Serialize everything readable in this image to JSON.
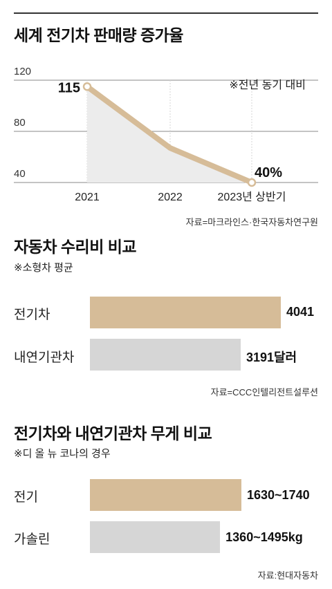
{
  "chart1": {
    "title": "세계 전기차 판매량 증가율",
    "note": "※전년 동기 대비",
    "source": "자료=마크라인스·한국자동차연구원"
  },
  "chart2": {
    "title": "자동차 수리비 비교",
    "note": "※소형차 평균",
    "source": "자료=CCC인텔리전트설루션"
  },
  "chart3": {
    "title": "전기차와 내연기관차 무게 비교",
    "note": "※디 올 뉴 코나의 경우",
    "source": "자료:현대자동차"
  },
  "colors": {
    "ev": "#d6bc98",
    "ice": "#d6d6d6",
    "area": "#ececec"
  },
  "chart_data": [
    {
      "type": "line",
      "title": "세계 전기차 판매량 증가율",
      "annotation": "※전년 동기 대비",
      "categories": [
        "2021",
        "2022",
        "2023년 상반기"
      ],
      "values": [
        115,
        67,
        40
      ],
      "data_labels": [
        "115",
        "",
        "40%"
      ],
      "yticks": [
        "120",
        "80",
        "40"
      ],
      "ylim": [
        40,
        120
      ],
      "grid": true,
      "fill_area": true
    },
    {
      "type": "bar",
      "orientation": "horizontal",
      "title": "자동차 수리비 비교",
      "annotation": "※소형차 평균",
      "categories": [
        "전기차",
        "내연기관차"
      ],
      "values": [
        4041,
        3191
      ],
      "data_labels": [
        "4041",
        "3191달러"
      ],
      "unit": "달러"
    },
    {
      "type": "bar",
      "orientation": "horizontal",
      "title": "전기차와 내연기관차 무게 비교",
      "annotation": "※디 올 뉴 코나의 경우",
      "categories": [
        "전기",
        "가솔린"
      ],
      "ranges": [
        [
          1630,
          1740
        ],
        [
          1360,
          1495
        ]
      ],
      "data_labels": [
        "1630~1740",
        "1360~1495kg"
      ],
      "unit": "kg"
    }
  ]
}
